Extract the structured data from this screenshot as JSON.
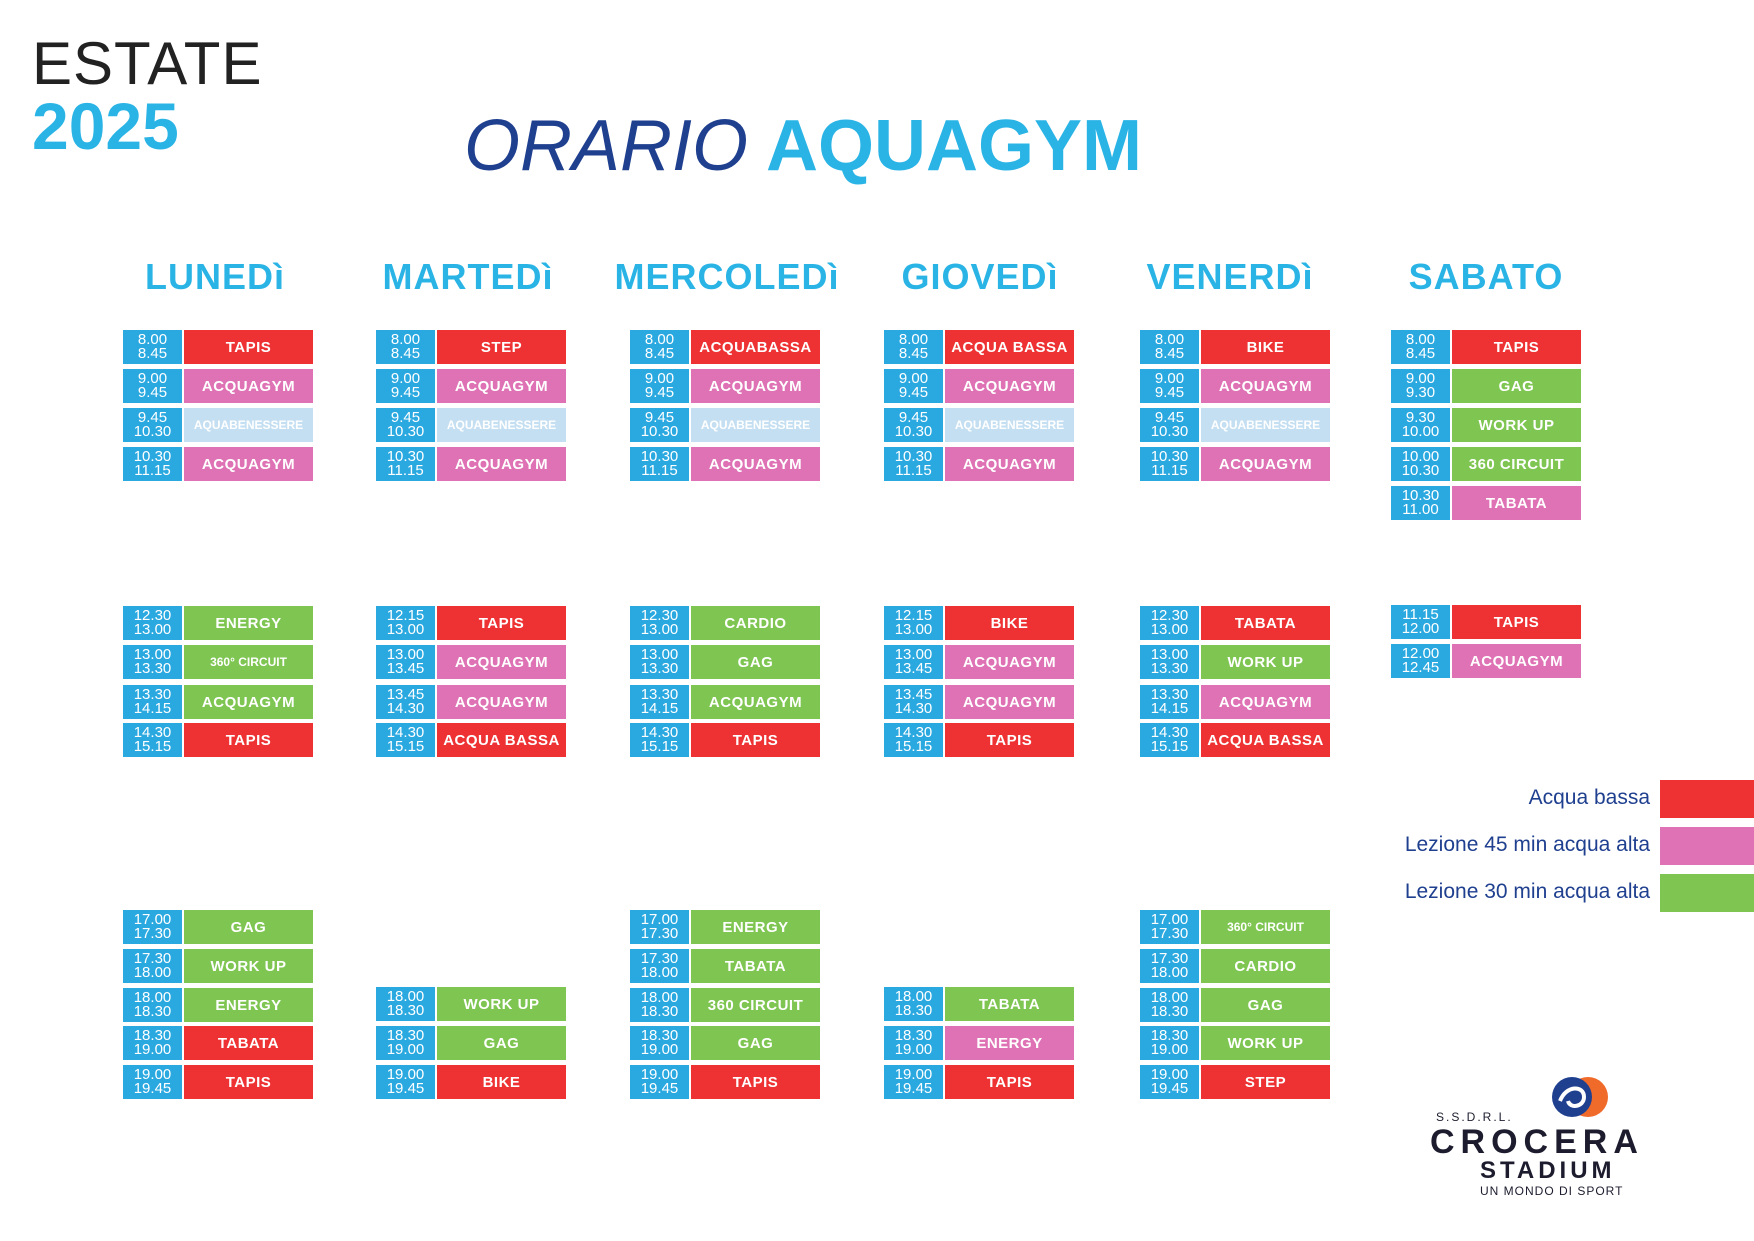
{
  "header": {
    "season": "ESTATE",
    "year": "2025",
    "title_light": "ORARIO",
    "title_bold": "AQUAGYM"
  },
  "days": [
    {
      "name": "LUNEDì",
      "slots": [
        {
          "from": "8.00",
          "to": "8.45",
          "class": "TAPIS",
          "color": "red"
        },
        {
          "from": "9.00",
          "to": "9.45",
          "class": "ACQUAGYM",
          "color": "pink"
        },
        {
          "from": "9.45",
          "to": "10.30",
          "class": "AQUABENESSERE",
          "color": "light"
        },
        {
          "from": "10.30",
          "to": "11.15",
          "class": "ACQUAGYM",
          "color": "pink"
        },
        {
          "from": "12.30",
          "to": "13.00",
          "class": "ENERGY",
          "color": "green"
        },
        {
          "from": "13.00",
          "to": "13.30",
          "class": "360° CIRCUIT",
          "color": "green"
        },
        {
          "from": "13.30",
          "to": "14.15",
          "class": "ACQUAGYM",
          "color": "green"
        },
        {
          "from": "14.30",
          "to": "15.15",
          "class": "TAPIS",
          "color": "red"
        },
        {
          "from": "17.00",
          "to": "17.30",
          "class": "GAG",
          "color": "green"
        },
        {
          "from": "17.30",
          "to": "18.00",
          "class": "WORK UP",
          "color": "green"
        },
        {
          "from": "18.00",
          "to": "18.30",
          "class": "ENERGY",
          "color": "green"
        },
        {
          "from": "18.30",
          "to": "19.00",
          "class": "TABATA",
          "color": "red"
        },
        {
          "from": "19.00",
          "to": "19.45",
          "class": "TAPIS",
          "color": "red"
        }
      ]
    },
    {
      "name": "MARTEDì",
      "slots": [
        {
          "from": "8.00",
          "to": "8.45",
          "class": "STEP",
          "color": "red"
        },
        {
          "from": "9.00",
          "to": "9.45",
          "class": "ACQUAGYM",
          "color": "pink"
        },
        {
          "from": "9.45",
          "to": "10.30",
          "class": "AQUABENESSERE",
          "color": "light"
        },
        {
          "from": "10.30",
          "to": "11.15",
          "class": "ACQUAGYM",
          "color": "pink"
        },
        {
          "from": "12.15",
          "to": "13.00",
          "class": "TAPIS",
          "color": "red"
        },
        {
          "from": "13.00",
          "to": "13.45",
          "class": "ACQUAGYM",
          "color": "pink"
        },
        {
          "from": "13.45",
          "to": "14.30",
          "class": "ACQUAGYM",
          "color": "pink"
        },
        {
          "from": "14.30",
          "to": "15.15",
          "class": "ACQUA BASSA",
          "color": "red"
        },
        {
          "from": "18.00",
          "to": "18.30",
          "class": "WORK UP",
          "color": "green"
        },
        {
          "from": "18.30",
          "to": "19.00",
          "class": "GAG",
          "color": "green"
        },
        {
          "from": "19.00",
          "to": "19.45",
          "class": "BIKE",
          "color": "red"
        }
      ]
    },
    {
      "name": "MERCOLEDì",
      "slots": [
        {
          "from": "8.00",
          "to": "8.45",
          "class": "ACQUABASSA",
          "color": "red"
        },
        {
          "from": "9.00",
          "to": "9.45",
          "class": "ACQUAGYM",
          "color": "pink"
        },
        {
          "from": "9.45",
          "to": "10.30",
          "class": "AQUABENESSERE",
          "color": "light"
        },
        {
          "from": "10.30",
          "to": "11.15",
          "class": "ACQUAGYM",
          "color": "pink"
        },
        {
          "from": "12.30",
          "to": "13.00",
          "class": "CARDIO",
          "color": "green"
        },
        {
          "from": "13.00",
          "to": "13.30",
          "class": "GAG",
          "color": "green"
        },
        {
          "from": "13.30",
          "to": "14.15",
          "class": "ACQUAGYM",
          "color": "green"
        },
        {
          "from": "14.30",
          "to": "15.15",
          "class": "TAPIS",
          "color": "red"
        },
        {
          "from": "17.00",
          "to": "17.30",
          "class": "ENERGY",
          "color": "green"
        },
        {
          "from": "17.30",
          "to": "18.00",
          "class": "TABATA",
          "color": "green"
        },
        {
          "from": "18.00",
          "to": "18.30",
          "class": "360 CIRCUIT",
          "color": "green"
        },
        {
          "from": "18.30",
          "to": "19.00",
          "class": "GAG",
          "color": "green"
        },
        {
          "from": "19.00",
          "to": "19.45",
          "class": "TAPIS",
          "color": "red"
        }
      ]
    },
    {
      "name": "GIOVEDì",
      "slots": [
        {
          "from": "8.00",
          "to": "8.45",
          "class": "ACQUA BASSA",
          "color": "red"
        },
        {
          "from": "9.00",
          "to": "9.45",
          "class": "ACQUAGYM",
          "color": "pink"
        },
        {
          "from": "9.45",
          "to": "10.30",
          "class": "AQUABENESSERE",
          "color": "light"
        },
        {
          "from": "10.30",
          "to": "11.15",
          "class": "ACQUAGYM",
          "color": "pink"
        },
        {
          "from": "12.15",
          "to": "13.00",
          "class": "BIKE",
          "color": "red"
        },
        {
          "from": "13.00",
          "to": "13.45",
          "class": "ACQUAGYM",
          "color": "pink"
        },
        {
          "from": "13.45",
          "to": "14.30",
          "class": "ACQUAGYM",
          "color": "pink"
        },
        {
          "from": "14.30",
          "to": "15.15",
          "class": "TAPIS",
          "color": "red"
        },
        {
          "from": "18.00",
          "to": "18.30",
          "class": "TABATA",
          "color": "green"
        },
        {
          "from": "18.30",
          "to": "19.00",
          "class": "ENERGY",
          "color": "pink"
        },
        {
          "from": "19.00",
          "to": "19.45",
          "class": "TAPIS",
          "color": "red"
        }
      ]
    },
    {
      "name": "VENERDì",
      "slots": [
        {
          "from": "8.00",
          "to": "8.45",
          "class": "BIKE",
          "color": "red"
        },
        {
          "from": "9.00",
          "to": "9.45",
          "class": "ACQUAGYM",
          "color": "pink"
        },
        {
          "from": "9.45",
          "to": "10.30",
          "class": "AQUABENESSERE",
          "color": "light"
        },
        {
          "from": "10.30",
          "to": "11.15",
          "class": "ACQUAGYM",
          "color": "pink"
        },
        {
          "from": "12.30",
          "to": "13.00",
          "class": "TABATA",
          "color": "red"
        },
        {
          "from": "13.00",
          "to": "13.30",
          "class": "WORK UP",
          "color": "green"
        },
        {
          "from": "13.30",
          "to": "14.15",
          "class": "ACQUAGYM",
          "color": "pink"
        },
        {
          "from": "14.30",
          "to": "15.15",
          "class": "ACQUA BASSA",
          "color": "red"
        },
        {
          "from": "17.00",
          "to": "17.30",
          "class": "360° CIRCUIT",
          "color": "green"
        },
        {
          "from": "17.30",
          "to": "18.00",
          "class": "CARDIO",
          "color": "green"
        },
        {
          "from": "18.00",
          "to": "18.30",
          "class": "GAG",
          "color": "green"
        },
        {
          "from": "18.30",
          "to": "19.00",
          "class": "WORK UP",
          "color": "green"
        },
        {
          "from": "19.00",
          "to": "19.45",
          "class": "STEP",
          "color": "red"
        }
      ]
    },
    {
      "name": "SABATO",
      "slots": [
        {
          "from": "8.00",
          "to": "8.45",
          "class": "TAPIS",
          "color": "red"
        },
        {
          "from": "9.00",
          "to": "9.30",
          "class": "GAG",
          "color": "green"
        },
        {
          "from": "9.30",
          "to": "10.00",
          "class": "WORK UP",
          "color": "green"
        },
        {
          "from": "10.00",
          "to": "10.30",
          "class": "360 CIRCUIT",
          "color": "green"
        },
        {
          "from": "10.30",
          "to": "11.00",
          "class": "TABATA",
          "color": "pink"
        },
        {
          "from": "11.15",
          "to": "12.00",
          "class": "TAPIS",
          "color": "red"
        },
        {
          "from": "12.00",
          "to": "12.45",
          "class": "ACQUAGYM",
          "color": "pink"
        }
      ]
    }
  ],
  "legend": [
    {
      "label": "Acqua bassa",
      "color": "#ee3233"
    },
    {
      "label": "Lezione 45 min acqua alta",
      "color": "#de72b4"
    },
    {
      "label": "Lezione 30 min acqua alta",
      "color": "#7ec551"
    }
  ],
  "logo": {
    "small": "S.S.D.R.L.",
    "name": "CROCERA",
    "sub": "STADIUM",
    "tagline": "UN MONDO DI SPORT"
  }
}
